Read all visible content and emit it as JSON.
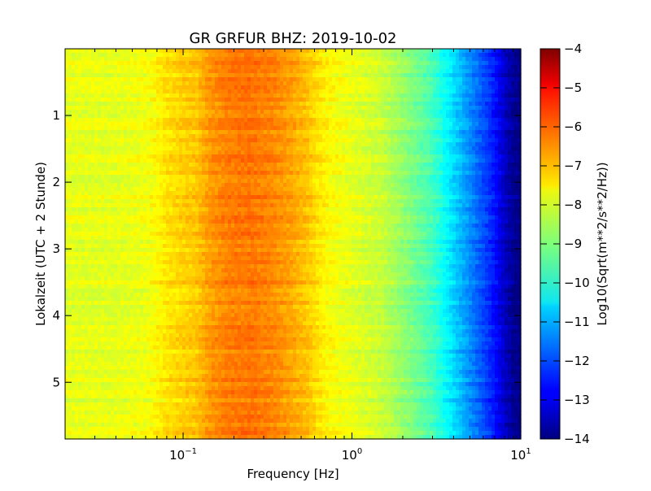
{
  "chart_data": {
    "type": "heatmap",
    "title": "GR GRFUR BHZ: 2019-10-02",
    "xlabel": "Frequency [Hz]",
    "ylabel": "Lokalzeit (UTC + 2 Stunde)",
    "x_scale": "log",
    "xlim": [
      0.02,
      10
    ],
    "ylim": [
      5.85,
      0.0
    ],
    "x_ticks": [
      {
        "value": 0.1,
        "base": "10",
        "exp": "−1"
      },
      {
        "value": 1,
        "base": "10",
        "exp": "0"
      },
      {
        "value": 10,
        "base": "10",
        "exp": "1"
      }
    ],
    "y_ticks": [
      {
        "value": 1,
        "label": "1"
      },
      {
        "value": 2,
        "label": "2"
      },
      {
        "value": 3,
        "label": "3"
      },
      {
        "value": 4,
        "label": "4"
      },
      {
        "value": 5,
        "label": "5"
      }
    ],
    "colorbar": {
      "label": "Log10(Sqrt(m**2/s**2/Hz))",
      "vmin": -14,
      "vmax": -4,
      "colormap": "jet",
      "ticks": [
        "−4",
        "−5",
        "−6",
        "−7",
        "−8",
        "−9",
        "−10",
        "−11",
        "−12",
        "−13",
        "−14"
      ]
    },
    "spectrum_profile": {
      "frequency_hz": [
        0.02,
        0.04,
        0.06,
        0.08,
        0.1,
        0.12,
        0.14,
        0.18,
        0.25,
        0.35,
        0.45,
        0.55,
        0.7,
        1.0,
        1.5,
        2.0,
        3.0,
        4.0,
        5.0,
        6.0,
        7.0,
        8.0,
        9.0,
        10.0
      ],
      "log10_amplitude": [
        -8.0,
        -8.0,
        -7.9,
        -7.5,
        -7.3,
        -7.2,
        -6.8,
        -6.5,
        -6.4,
        -6.6,
        -6.9,
        -7.2,
        -7.7,
        -8.0,
        -8.3,
        -8.8,
        -9.6,
        -10.6,
        -11.4,
        -12.0,
        -12.6,
        -13.3,
        -13.8,
        -14.0
      ]
    },
    "grid": false,
    "legend": "colorbar-right"
  }
}
